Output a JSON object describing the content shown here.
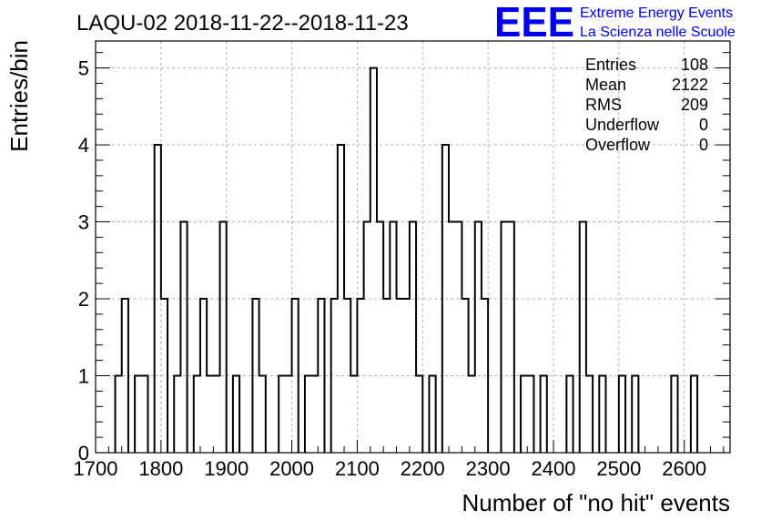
{
  "header": {
    "title": "LAQU-02 2018-11-22--2018-11-23",
    "logo_letters": "EEE",
    "logo_line1": "Extreme Energy Events",
    "logo_line2": "La Scienza nelle Scuole",
    "logo_color": "#0000ee"
  },
  "stats": {
    "rows": [
      {
        "label": "Entries",
        "value": "108"
      },
      {
        "label": "Mean",
        "value": "2122"
      },
      {
        "label": "RMS",
        "value": "209"
      },
      {
        "label": "Underflow",
        "value": "0"
      },
      {
        "label": "Overflow",
        "value": "0"
      }
    ]
  },
  "chart_data": {
    "type": "histogram",
    "title": "LAQU-02 2018-11-22--2018-11-23",
    "xlabel": "Number of \"no hit\" events",
    "ylabel": "Entries/bin",
    "xlim": [
      1700,
      2670
    ],
    "ylim": [
      0,
      5.35
    ],
    "bin_width": 10,
    "x_ticks": [
      1700,
      1800,
      1900,
      2000,
      2100,
      2200,
      2300,
      2400,
      2500,
      2600
    ],
    "y_ticks": [
      0,
      1,
      2,
      3,
      4,
      5
    ],
    "grid": true,
    "line_color": "#000000",
    "bins": [
      {
        "x": 1730,
        "y": 1
      },
      {
        "x": 1740,
        "y": 2
      },
      {
        "x": 1760,
        "y": 1
      },
      {
        "x": 1770,
        "y": 1
      },
      {
        "x": 1790,
        "y": 4
      },
      {
        "x": 1800,
        "y": 2
      },
      {
        "x": 1820,
        "y": 1
      },
      {
        "x": 1830,
        "y": 3
      },
      {
        "x": 1850,
        "y": 1
      },
      {
        "x": 1860,
        "y": 2
      },
      {
        "x": 1870,
        "y": 1
      },
      {
        "x": 1880,
        "y": 1
      },
      {
        "x": 1890,
        "y": 3
      },
      {
        "x": 1910,
        "y": 1
      },
      {
        "x": 1940,
        "y": 2
      },
      {
        "x": 1950,
        "y": 1
      },
      {
        "x": 1980,
        "y": 1
      },
      {
        "x": 1990,
        "y": 1
      },
      {
        "x": 2000,
        "y": 2
      },
      {
        "x": 2020,
        "y": 1
      },
      {
        "x": 2030,
        "y": 1
      },
      {
        "x": 2040,
        "y": 2
      },
      {
        "x": 2060,
        "y": 2
      },
      {
        "x": 2070,
        "y": 4
      },
      {
        "x": 2080,
        "y": 2
      },
      {
        "x": 2090,
        "y": 1
      },
      {
        "x": 2100,
        "y": 2
      },
      {
        "x": 2110,
        "y": 3
      },
      {
        "x": 2120,
        "y": 5
      },
      {
        "x": 2130,
        "y": 3
      },
      {
        "x": 2140,
        "y": 2
      },
      {
        "x": 2150,
        "y": 3
      },
      {
        "x": 2160,
        "y": 2
      },
      {
        "x": 2170,
        "y": 2
      },
      {
        "x": 2180,
        "y": 3
      },
      {
        "x": 2190,
        "y": 1
      },
      {
        "x": 2210,
        "y": 1
      },
      {
        "x": 2230,
        "y": 4
      },
      {
        "x": 2240,
        "y": 3
      },
      {
        "x": 2250,
        "y": 3
      },
      {
        "x": 2260,
        "y": 2
      },
      {
        "x": 2270,
        "y": 1
      },
      {
        "x": 2280,
        "y": 3
      },
      {
        "x": 2290,
        "y": 2
      },
      {
        "x": 2320,
        "y": 3
      },
      {
        "x": 2330,
        "y": 3
      },
      {
        "x": 2350,
        "y": 1
      },
      {
        "x": 2360,
        "y": 1
      },
      {
        "x": 2380,
        "y": 1
      },
      {
        "x": 2420,
        "y": 1
      },
      {
        "x": 2440,
        "y": 3
      },
      {
        "x": 2450,
        "y": 1
      },
      {
        "x": 2470,
        "y": 1
      },
      {
        "x": 2500,
        "y": 1
      },
      {
        "x": 2520,
        "y": 1
      },
      {
        "x": 2580,
        "y": 1
      },
      {
        "x": 2610,
        "y": 1
      }
    ]
  }
}
